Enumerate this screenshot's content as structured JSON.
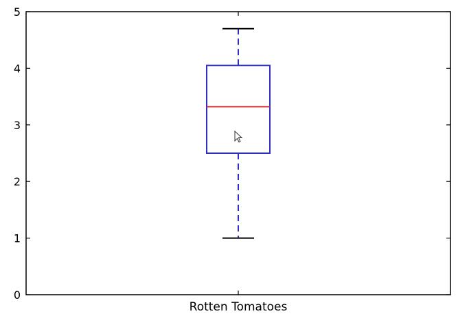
{
  "chart_data": {
    "type": "box",
    "categories": [
      "Rotten Tomatoes"
    ],
    "boxes": [
      {
        "name": "Rotten Tomatoes",
        "whisker_low": 1.0,
        "q1": 2.5,
        "median": 3.32,
        "q3": 4.05,
        "whisker_high": 4.7
      }
    ],
    "ylim": [
      0,
      5
    ],
    "yticks": [
      "0",
      "1",
      "2",
      "3",
      "4",
      "5"
    ],
    "grid": false,
    "colors": {
      "box": "#2e2ebf",
      "median": "#d62728",
      "whisker": "#2e2ebf",
      "cap": "#000000",
      "axes": "#000000"
    }
  }
}
